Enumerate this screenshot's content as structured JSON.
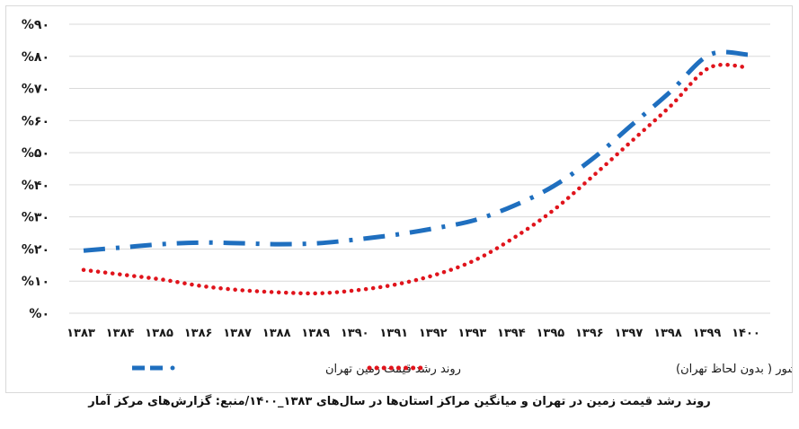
{
  "chart_data": {
    "type": "line",
    "title": "",
    "xlabel": "",
    "ylabel": "",
    "categories": [
      "۱۳۸۳",
      "۱۳۸۴",
      "۱۳۸۵",
      "۱۳۸۶",
      "۱۳۸۷",
      "۱۳۸۸",
      "۱۳۸۹",
      "۱۳۹۰",
      "۱۳۹۱",
      "۱۳۹۲",
      "۱۳۹۳",
      "۱۳۹۴",
      "۱۳۹۵",
      "۱۳۹۶",
      "۱۳۹۷",
      "۱۳۹۸",
      "۱۳۹۹",
      "۱۴۰۰"
    ],
    "y_ticks": [
      {
        "value": 0,
        "label": "%۰"
      },
      {
        "value": 10,
        "label": "%۱۰"
      },
      {
        "value": 20,
        "label": "%۲۰"
      },
      {
        "value": 30,
        "label": "%۳۰"
      },
      {
        "value": 40,
        "label": "%۴۰"
      },
      {
        "value": 50,
        "label": "%۵۰"
      },
      {
        "value": 60,
        "label": "%۶۰"
      },
      {
        "value": 70,
        "label": "%۷۰"
      },
      {
        "value": 80,
        "label": "%۸۰"
      },
      {
        "value": 90,
        "label": "%۹۰"
      }
    ],
    "ylim": [
      0,
      90
    ],
    "grid": true,
    "legend_position": "bottom",
    "series": [
      {
        "name": "روند رشد قیمت زمین تهران",
        "color": "#1f6fbf",
        "style": "dash-dot",
        "values": [
          19.5,
          20.5,
          21.5,
          22,
          21.8,
          21.5,
          21.8,
          23,
          24.5,
          26.5,
          29,
          33.5,
          39.5,
          48,
          58.5,
          69,
          80.5,
          80.5
        ]
      },
      {
        "name": "روند رشد قیمت زمین کشور ( بدون لحاظ تهران)",
        "color": "#e0141c",
        "style": "dotted",
        "values": [
          13.5,
          12,
          10.5,
          8.5,
          7.2,
          6.5,
          6.2,
          7.2,
          9,
          12,
          16.5,
          23.5,
          32,
          42.5,
          53.5,
          64.5,
          76.5,
          76.5
        ]
      }
    ]
  },
  "caption": "روند رشد قیمت زمین در تهران و میانگین مراکز استان‌ها در سال‌های ۱۳۸۳_۱۴۰۰/منبع: گزارش‌های مرکز آمار"
}
